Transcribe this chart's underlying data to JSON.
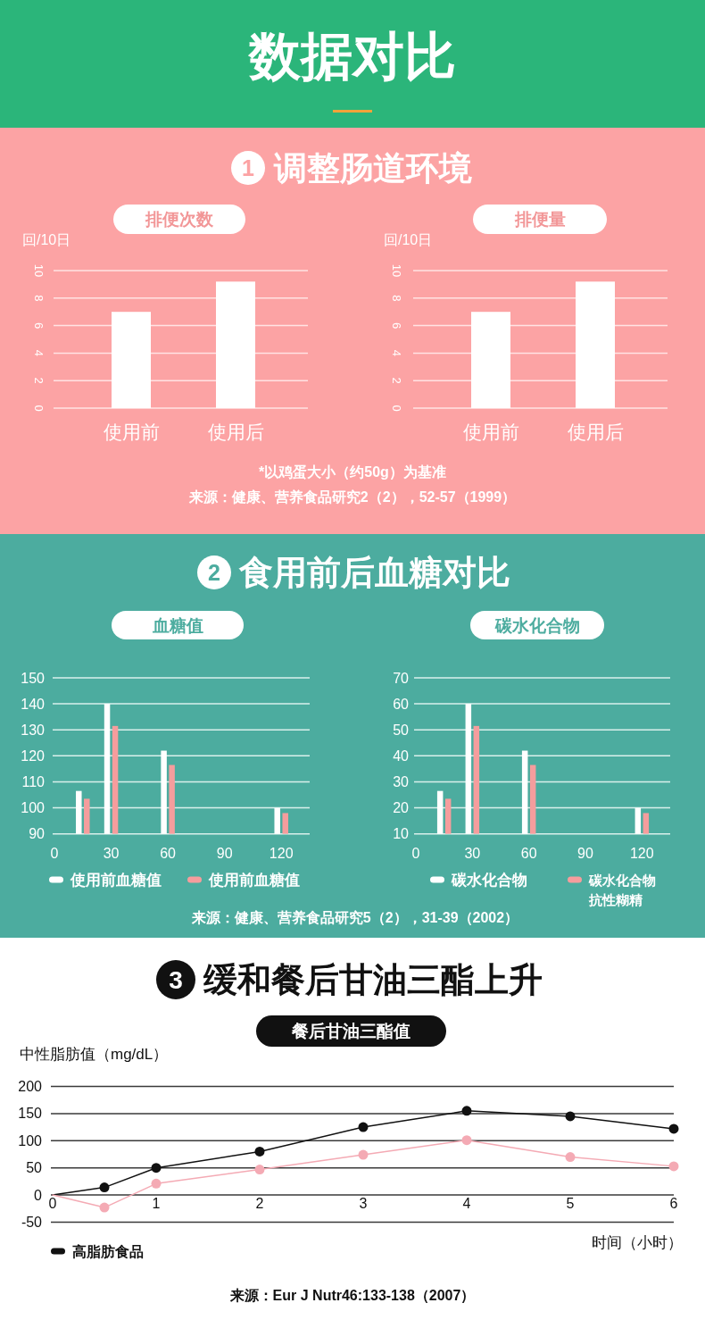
{
  "chart_data": [
    {
      "type": "bar",
      "title": "排便次数",
      "ylabel": "回/10日",
      "categories": [
        "使用前",
        "使用后"
      ],
      "values": [
        7,
        9.2
      ],
      "color": "#ffffff",
      "ylim": [
        0,
        10
      ],
      "yticks": [
        0,
        2,
        4,
        6,
        8,
        10
      ],
      "grid": "y",
      "annotations": [
        "数据对比",
        "1",
        "调整肠道环境"
      ]
    },
    {
      "type": "bar",
      "title": "排便量",
      "ylabel": "回/10日",
      "categories": [
        "使用前",
        "使用后"
      ],
      "values": [
        7,
        9.2
      ],
      "color": "#ffffff",
      "ylim": [
        0,
        10
      ],
      "yticks": [
        0,
        2,
        4,
        6,
        8,
        10
      ],
      "grid": "y",
      "annotations": [
        "*以鸡蛋大小（约50g）为基准",
        "来源：健康、营养食品研究2（2），52-57（1999）"
      ]
    },
    {
      "type": "bar",
      "title": "血糖值",
      "x": [
        15,
        30,
        60,
        120
      ],
      "xlim": [
        0,
        135
      ],
      "xticks": [
        0,
        30,
        60,
        90,
        120
      ],
      "series": [
        {
          "name": "使用前血糖值",
          "color": "#ffffff",
          "values": [
            106.5,
            140,
            122,
            100
          ]
        },
        {
          "name": "使用前血糖值",
          "color": "#f59d9d",
          "values": [
            103.5,
            131.5,
            116.5,
            98
          ]
        }
      ],
      "ylim": [
        90,
        150
      ],
      "yticks": [
        90,
        100,
        110,
        120,
        130,
        140,
        150
      ],
      "grid": "y",
      "legend": "bottom",
      "annotations": [
        "2",
        "食用前后血糖对比"
      ]
    },
    {
      "type": "bar",
      "title": "碳水化合物",
      "x": [
        15,
        30,
        60,
        120
      ],
      "xlim": [
        0,
        135
      ],
      "xticks": [
        0,
        30,
        60,
        90,
        120
      ],
      "series": [
        {
          "name": "碳水化合物",
          "color": "#ffffff",
          "values": [
            26.5,
            60,
            42,
            20
          ]
        },
        {
          "name": "碳水化合物抗性糊精",
          "color": "#f59d9d",
          "values": [
            23.5,
            51.5,
            36.5,
            18
          ]
        }
      ],
      "ylim": [
        10,
        70
      ],
      "yticks": [
        10,
        20,
        30,
        40,
        50,
        60,
        70
      ],
      "grid": "y",
      "legend": "bottom",
      "annotations": [
        "来源：健康、营养食品研究5（2），31-39（2002）"
      ]
    },
    {
      "type": "line",
      "title": "餐后甘油三酯值",
      "ylabel": "中性脂肪值（mg/dL）",
      "xlabel": "时间（小时）",
      "x": [
        0,
        0.5,
        1,
        2,
        3,
        4,
        5,
        6
      ],
      "xlim": [
        0,
        6
      ],
      "xticks": [
        0,
        1,
        2,
        3,
        4,
        5,
        6
      ],
      "series": [
        {
          "name": "高脂肪食品",
          "color": "#111111",
          "values": [
            0,
            14,
            50,
            80,
            125,
            155,
            145,
            122
          ]
        },
        {
          "color": "#f4aab4",
          "values": [
            0,
            -23,
            21,
            47,
            74,
            101,
            70,
            53
          ]
        }
      ],
      "ylim": [
        -50,
        200
      ],
      "yticks": [
        -50,
        0,
        50,
        100,
        150,
        200
      ],
      "grid": "y",
      "legend": "bottom left",
      "marker": "circle",
      "annotations": [
        "3",
        "缓和餐后甘油三酯上升",
        "来源：Eur J Nutr46:133-138（2007）"
      ]
    }
  ]
}
